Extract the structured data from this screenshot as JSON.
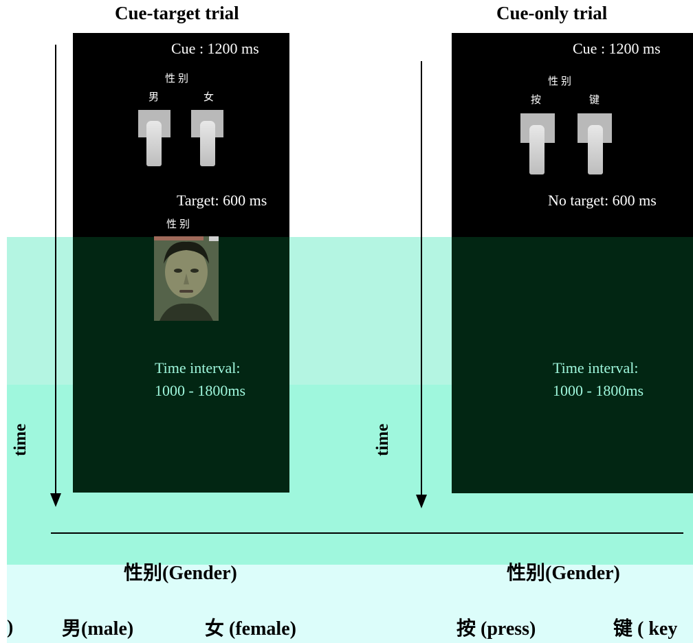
{
  "left_panel": {
    "title": "Cue-target trial",
    "cue_label": "Cue : 1200 ms",
    "cue_top": "性别",
    "cue_left": "男",
    "cue_right": "女",
    "target_label": "Target: 600 ms",
    "target_cjk": "性别",
    "interval_line1": "Time interval:",
    "interval_line2": "1000 - 1800ms",
    "time_axis": "time"
  },
  "right_panel": {
    "title": "Cue-only trial",
    "cue_label": "Cue : 1200 ms",
    "cue_top": "性别",
    "cue_left": "按",
    "cue_right": "键",
    "notarget_label": "No target: 600 ms",
    "interval_line1": "Time interval:",
    "interval_line2": "1000 - 1800ms",
    "time_axis": "time"
  },
  "legend": {
    "left_heading_cjk": "性别",
    "left_heading_en": "(Gender)",
    "right_heading_cjk": "性别",
    "right_heading_en": "(Gender)",
    "male_cjk": "男",
    "male_en": "(male)",
    "female_cjk": "女",
    "female_en": " (female)",
    "press_cjk": "按",
    "press_en": " (press)",
    "key_cjk": "键",
    "key_en": " ( key",
    "left_edge": ")"
  },
  "colors": {
    "panel_black": "#000000",
    "panel_dark_green": "#022613",
    "overlay_mint": "#9ff7dd",
    "interval_text": "#9ff7dd"
  }
}
